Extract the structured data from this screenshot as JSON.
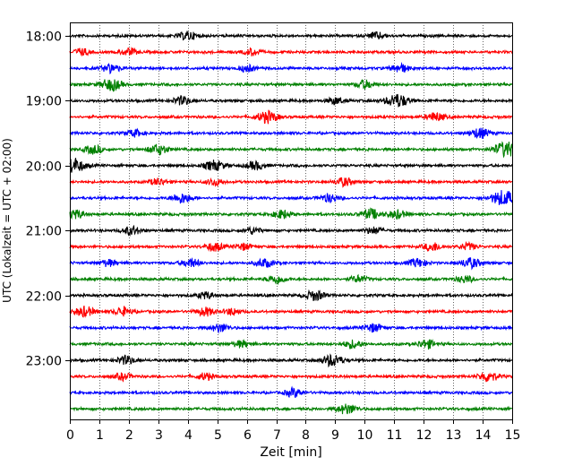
{
  "chart_data": {
    "type": "line",
    "subtype": "helicorder",
    "xlabel": "Zeit  [min]",
    "ylabel": "UTC (Lokalzeit = UTC + 02:00)",
    "xlim": [
      0,
      15
    ],
    "x_ticks": [
      "0",
      "1",
      "2",
      "3",
      "4",
      "5",
      "6",
      "7",
      "8",
      "9",
      "10",
      "11",
      "12",
      "13",
      "14",
      "15"
    ],
    "y_ticks": [
      "18:00",
      "19:00",
      "20:00",
      "21:00",
      "22:00",
      "23:00"
    ],
    "x_grid": "dotted vertical lines at each minute",
    "trace_colors": [
      "#000000",
      "#ff0000",
      "#0000ff",
      "#008000"
    ],
    "traces": [
      {
        "start": "18:00",
        "events": [
          [
            4.0,
            0.5
          ],
          [
            10.4,
            0.4
          ]
        ]
      },
      {
        "start": "18:15",
        "events": [
          [
            0.4,
            0.4
          ],
          [
            2.0,
            0.4
          ],
          [
            6.2,
            0.4
          ]
        ]
      },
      {
        "start": "18:30",
        "events": [
          [
            1.4,
            0.5
          ],
          [
            6.0,
            0.4
          ],
          [
            11.2,
            0.5
          ]
        ]
      },
      {
        "start": "18:45",
        "events": [
          [
            1.4,
            0.7
          ],
          [
            10.0,
            0.5
          ]
        ]
      },
      {
        "start": "19:00",
        "events": [
          [
            3.8,
            0.5
          ],
          [
            9.0,
            0.4
          ],
          [
            11.1,
            0.8
          ]
        ]
      },
      {
        "start": "19:15",
        "events": [
          [
            6.7,
            0.7
          ],
          [
            12.4,
            0.5
          ]
        ]
      },
      {
        "start": "19:30",
        "events": [
          [
            2.2,
            0.4
          ],
          [
            13.9,
            0.6
          ]
        ]
      },
      {
        "start": "19:45",
        "events": [
          [
            0.8,
            0.5
          ],
          [
            3.0,
            0.6
          ],
          [
            14.8,
            0.9
          ]
        ]
      },
      {
        "start": "20:00",
        "events": [
          [
            0.1,
            0.9
          ],
          [
            4.9,
            0.6
          ],
          [
            6.3,
            0.5
          ]
        ]
      },
      {
        "start": "20:15",
        "events": [
          [
            3.0,
            0.4
          ],
          [
            4.9,
            0.4
          ],
          [
            9.3,
            0.5
          ]
        ]
      },
      {
        "start": "20:30",
        "events": [
          [
            3.8,
            0.6
          ],
          [
            8.8,
            0.5
          ],
          [
            14.7,
            0.9
          ]
        ]
      },
      {
        "start": "20:45",
        "events": [
          [
            0.2,
            0.5
          ],
          [
            7.2,
            0.5
          ],
          [
            10.2,
            0.6
          ],
          [
            11.1,
            0.5
          ]
        ]
      },
      {
        "start": "21:00",
        "events": [
          [
            2.1,
            0.5
          ],
          [
            6.2,
            0.4
          ],
          [
            10.3,
            0.4
          ]
        ]
      },
      {
        "start": "21:15",
        "events": [
          [
            4.9,
            0.5
          ],
          [
            5.9,
            0.4
          ],
          [
            12.3,
            0.5
          ],
          [
            13.5,
            0.4
          ]
        ]
      },
      {
        "start": "21:30",
        "events": [
          [
            1.3,
            0.4
          ],
          [
            4.1,
            0.5
          ],
          [
            6.6,
            0.5
          ],
          [
            11.8,
            0.5
          ],
          [
            13.6,
            0.6
          ]
        ]
      },
      {
        "start": "21:45",
        "events": [
          [
            7.0,
            0.5
          ],
          [
            9.8,
            0.4
          ],
          [
            13.4,
            0.4
          ]
        ]
      },
      {
        "start": "22:00",
        "events": [
          [
            4.6,
            0.4
          ],
          [
            8.3,
            0.6
          ]
        ]
      },
      {
        "start": "22:15",
        "events": [
          [
            0.5,
            0.6
          ],
          [
            1.8,
            0.5
          ],
          [
            4.6,
            0.5
          ],
          [
            5.5,
            0.4
          ]
        ]
      },
      {
        "start": "22:30",
        "events": [
          [
            5.1,
            0.5
          ],
          [
            10.3,
            0.5
          ]
        ]
      },
      {
        "start": "22:45",
        "events": [
          [
            5.8,
            0.4
          ],
          [
            9.6,
            0.5
          ],
          [
            12.1,
            0.5
          ]
        ]
      },
      {
        "start": "23:00",
        "events": [
          [
            1.9,
            0.5
          ],
          [
            8.9,
            0.7
          ]
        ]
      },
      {
        "start": "23:15",
        "events": [
          [
            1.8,
            0.4
          ],
          [
            4.6,
            0.4
          ],
          [
            14.2,
            0.6
          ]
        ]
      },
      {
        "start": "23:30",
        "events": [
          [
            7.6,
            0.5
          ]
        ]
      },
      {
        "start": "23:45",
        "events": [
          [
            9.4,
            0.6
          ]
        ]
      }
    ]
  }
}
